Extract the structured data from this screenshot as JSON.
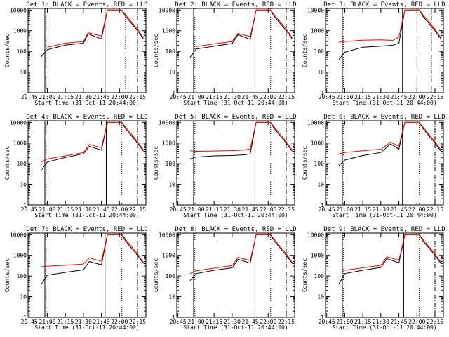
{
  "chart_data": [
    {
      "type": "line",
      "title": "Det 1: BLACK = Events, RED = LLD",
      "xlabel": "Start Time (31-Oct-11 20:44:00)",
      "ylabel": "Counts/sec",
      "yscale": "log",
      "ylim": [
        1,
        12000
      ],
      "x_ticks": [
        "20:45",
        "21:00",
        "21:15",
        "21:30",
        "21:45",
        "22:00",
        "22:15"
      ],
      "y_ticks": [
        "1",
        "10",
        "100",
        "1000",
        "10000"
      ],
      "solid_lines": [
        "20:58",
        "21:48"
      ],
      "dotted_lines": [
        "20:59",
        "22:05"
      ],
      "dashdot_lines": [
        "22:15"
      ],
      "x": [
        "20:55",
        "21:00",
        "21:15",
        "21:30",
        "21:34",
        "21:45",
        "21:50",
        "21:56",
        "22:02",
        "22:05",
        "22:15",
        "22:20"
      ],
      "series": [
        {
          "name": "BLACK",
          "color": "#000000",
          "values": [
            55,
            120,
            200,
            250,
            700,
            400,
            10000,
            10000,
            10000,
            5000,
            1000,
            400
          ]
        },
        {
          "name": "RED",
          "color": "#ff0000",
          "values": [
            null,
            160,
            250,
            300,
            800,
            550,
            10000,
            10000,
            10000,
            6000,
            1200,
            450
          ]
        }
      ]
    },
    {
      "type": "line",
      "title": "Det 2: BLACK = Events, RED = LLD",
      "xlabel": "Start Time (31-Oct-11 20:44:00)",
      "ylabel": "Counts/sec",
      "yscale": "log",
      "ylim": [
        1,
        12000
      ],
      "x_ticks": [
        "20:45",
        "21:00",
        "21:15",
        "21:30",
        "21:45",
        "22:00",
        "22:15"
      ],
      "y_ticks": [
        "1",
        "10",
        "100",
        "1000",
        "10000"
      ],
      "solid_lines": [
        "20:58",
        "21:49"
      ],
      "dotted_lines": [
        "20:59",
        "22:02"
      ],
      "dashdot_lines": [
        "22:15"
      ],
      "x": [
        "20:55",
        "21:00",
        "21:15",
        "21:30",
        "21:35",
        "21:45",
        "21:50",
        "21:56",
        "22:02",
        "22:05",
        "22:15",
        "22:20"
      ],
      "series": [
        {
          "name": "BLACK",
          "color": "#000000",
          "values": [
            50,
            130,
            180,
            240,
            650,
            380,
            10000,
            10000,
            10000,
            5000,
            1000,
            400
          ]
        },
        {
          "name": "RED",
          "color": "#ff0000",
          "values": [
            null,
            170,
            230,
            300,
            750,
            520,
            10000,
            10000,
            10000,
            6000,
            1200,
            450
          ]
        }
      ]
    },
    {
      "type": "line",
      "title": "Det 3: BLACK = Events, RED = LLD",
      "xlabel": "Start Time (31-Oct-11 20:44:00)",
      "ylabel": "Counts/sec",
      "yscale": "log",
      "ylim": [
        1,
        12000
      ],
      "x_ticks": [
        "20:45",
        "21:00",
        "21:15",
        "21:30",
        "21:45",
        "22:00",
        "22:15"
      ],
      "y_ticks": [
        "1",
        "10",
        "100",
        "1000",
        "10000"
      ],
      "solid_lines": [
        "20:58",
        "21:48"
      ],
      "dotted_lines": [
        "20:59",
        "22:00"
      ],
      "dashdot_lines": [
        "22:12"
      ],
      "x": [
        "20:55",
        "21:00",
        "21:15",
        "21:30",
        "21:40",
        "21:45",
        "21:50",
        "21:56",
        "22:02",
        "22:05",
        "22:15",
        "22:20"
      ],
      "series": [
        {
          "name": "BLACK",
          "color": "#000000",
          "values": [
            40,
            90,
            160,
            180,
            200,
            250,
            10000,
            10000,
            10000,
            5000,
            1000,
            400
          ]
        },
        {
          "name": "RED",
          "color": "#ff0000",
          "values": [
            280,
            300,
            350,
            360,
            340,
            500,
            10000,
            10000,
            10000,
            6000,
            1200,
            450
          ]
        }
      ]
    },
    {
      "type": "line",
      "title": "Det 4: BLACK = Events, RED = LLD",
      "xlabel": "Start Time (31-Oct-11 20:44:00)",
      "ylabel": "Counts/sec",
      "yscale": "log",
      "ylim": [
        1,
        12000
      ],
      "x_ticks": [
        "20:45",
        "21:00",
        "21:15",
        "21:30",
        "21:45",
        "22:00",
        "22:15"
      ],
      "y_ticks": [
        "1",
        "10",
        "100",
        "1000",
        "10000"
      ],
      "solid_lines": [
        "20:58",
        "21:49"
      ],
      "dotted_lines": [
        "20:59",
        "22:02"
      ],
      "dashdot_lines": [
        "22:15"
      ],
      "x": [
        "20:55",
        "21:00",
        "21:15",
        "21:30",
        "21:35",
        "21:45",
        "21:50",
        "21:56",
        "22:02",
        "22:05",
        "22:15",
        "22:20"
      ],
      "series": [
        {
          "name": "BLACK",
          "color": "#000000",
          "values": [
            50,
            120,
            200,
            300,
            700,
            450,
            10000,
            10000,
            10000,
            5000,
            1000,
            400
          ]
        },
        {
          "name": "RED",
          "color": "#ff0000",
          "values": [
            120,
            170,
            240,
            350,
            850,
            600,
            10000,
            10000,
            10000,
            6000,
            1200,
            450
          ]
        }
      ]
    },
    {
      "type": "line",
      "title": "Det 5: BLACK = Events, RED = LLD",
      "xlabel": "Start Time (31-Oct-11 20:44:00)",
      "ylabel": "Counts/sec",
      "yscale": "log",
      "ylim": [
        1,
        12000
      ],
      "x_ticks": [
        "20:45",
        "21:00",
        "21:15",
        "21:30",
        "21:45",
        "22:00",
        "22:15"
      ],
      "y_ticks": [
        "1",
        "10",
        "100",
        "1000",
        "10000"
      ],
      "solid_lines": [
        "20:58",
        "21:49"
      ],
      "dotted_lines": [
        "20:59",
        "22:02"
      ],
      "dashdot_lines": [
        "22:15"
      ],
      "x": [
        "20:55",
        "21:00",
        "21:15",
        "21:30",
        "21:40",
        "21:45",
        "21:50",
        "21:56",
        "22:02",
        "22:05",
        "22:15",
        "22:20"
      ],
      "series": [
        {
          "name": "BLACK",
          "color": "#000000",
          "values": [
            170,
            210,
            240,
            250,
            270,
            300,
            10000,
            10000,
            10000,
            5000,
            1000,
            400
          ]
        },
        {
          "name": "RED",
          "color": "#ff0000",
          "values": [
            420,
            400,
            410,
            430,
            460,
            520,
            10000,
            10000,
            10000,
            6000,
            1200,
            450
          ]
        }
      ]
    },
    {
      "type": "line",
      "title": "Det 6: BLACK = Events, RED = LLD",
      "xlabel": "Start Time (31-Oct-11 20:44:00)",
      "ylabel": "Counts/sec",
      "yscale": "log",
      "ylim": [
        1,
        12000
      ],
      "x_ticks": [
        "20:45",
        "21:00",
        "21:15",
        "21:30",
        "21:45",
        "22:00",
        "22:15"
      ],
      "y_ticks": [
        "1",
        "10",
        "100",
        "1000",
        "10000"
      ],
      "solid_lines": [
        "20:58",
        "21:48"
      ],
      "dotted_lines": [
        "20:59",
        "22:02"
      ],
      "dashdot_lines": [
        "22:15"
      ],
      "x": [
        "20:55",
        "21:00",
        "21:15",
        "21:30",
        "21:38",
        "21:45",
        "21:50",
        "21:56",
        "22:02",
        "22:05",
        "22:15",
        "22:20"
      ],
      "series": [
        {
          "name": "BLACK",
          "color": "#000000",
          "values": [
            80,
            150,
            250,
            350,
            900,
            500,
            10000,
            10000,
            10000,
            5000,
            1000,
            400
          ]
        },
        {
          "name": "RED",
          "color": "#ff0000",
          "values": [
            300,
            350,
            420,
            500,
            1100,
            700,
            10000,
            10000,
            10000,
            6000,
            1200,
            450
          ]
        }
      ]
    },
    {
      "type": "line",
      "title": "Det 7: BLACK = Events, RED = LLD",
      "xlabel": "Start Time (31-Oct-11 20:44:00)",
      "ylabel": "Counts/sec",
      "yscale": "log",
      "ylim": [
        1,
        12000
      ],
      "x_ticks": [
        "20:45",
        "21:00",
        "21:15",
        "21:30",
        "21:45",
        "22:00",
        "22:15"
      ],
      "y_ticks": [
        "1",
        "10",
        "100",
        "1000",
        "10000"
      ],
      "solid_lines": [
        "20:58",
        "21:48"
      ],
      "dotted_lines": [
        "20:59",
        "22:02"
      ],
      "dashdot_lines": [
        "22:15"
      ],
      "x": [
        "20:55",
        "21:00",
        "21:15",
        "21:30",
        "21:35",
        "21:45",
        "21:50",
        "21:56",
        "22:02",
        "22:05",
        "22:15",
        "22:20"
      ],
      "series": [
        {
          "name": "BLACK",
          "color": "#000000",
          "values": [
            40,
            110,
            150,
            200,
            500,
            350,
            10000,
            10000,
            10000,
            5000,
            1000,
            400
          ]
        },
        {
          "name": "RED",
          "color": "#ff0000",
          "values": [
            280,
            300,
            330,
            380,
            750,
            520,
            10000,
            10000,
            10000,
            6000,
            1200,
            450
          ]
        }
      ]
    },
    {
      "type": "line",
      "title": "Det 8: BLACK = Events, RED = LLD",
      "xlabel": "Start Time (31-Oct-11 20:44:00)",
      "ylabel": "Counts/sec",
      "yscale": "log",
      "ylim": [
        1,
        12000
      ],
      "x_ticks": [
        "20:45",
        "21:00",
        "21:15",
        "21:30",
        "21:45",
        "22:00",
        "22:15"
      ],
      "y_ticks": [
        "1",
        "10",
        "100",
        "1000",
        "10000"
      ],
      "solid_lines": [
        "20:58",
        "21:49"
      ],
      "dotted_lines": [
        "20:59",
        "22:02"
      ],
      "dashdot_lines": [
        "22:15"
      ],
      "x": [
        "20:55",
        "21:00",
        "21:15",
        "21:30",
        "21:35",
        "21:45",
        "21:50",
        "21:56",
        "22:02",
        "22:05",
        "22:15",
        "22:20"
      ],
      "series": [
        {
          "name": "BLACK",
          "color": "#000000",
          "values": [
            60,
            130,
            190,
            250,
            650,
            420,
            10000,
            10000,
            10000,
            5000,
            1000,
            400
          ]
        },
        {
          "name": "RED",
          "color": "#ff0000",
          "values": [
            130,
            180,
            240,
            320,
            800,
            560,
            10000,
            10000,
            10000,
            6000,
            1200,
            450
          ]
        }
      ]
    },
    {
      "type": "line",
      "title": "Det 9: BLACK = Events, RED = LLD",
      "xlabel": "Start Time (31-Oct-11 20:44:00)",
      "ylabel": "Counts/sec",
      "yscale": "log",
      "ylim": [
        1,
        12000
      ],
      "x_ticks": [
        "20:45",
        "21:00",
        "21:15",
        "21:30",
        "21:45",
        "22:00",
        "22:15"
      ],
      "y_ticks": [
        "1",
        "10",
        "100",
        "1000",
        "10000"
      ],
      "solid_lines": [
        "20:58",
        "21:49"
      ],
      "dotted_lines": [
        "20:59",
        "22:02"
      ],
      "dashdot_lines": [
        "22:15"
      ],
      "x": [
        "20:55",
        "21:00",
        "21:15",
        "21:30",
        "21:35",
        "21:45",
        "21:50",
        "21:56",
        "22:02",
        "22:05",
        "22:15",
        "22:20"
      ],
      "series": [
        {
          "name": "BLACK",
          "color": "#000000",
          "values": [
            40,
            130,
            190,
            260,
            700,
            430,
            10000,
            10000,
            10000,
            5000,
            1000,
            400
          ]
        },
        {
          "name": "RED",
          "color": "#ff0000",
          "values": [
            null,
            190,
            250,
            330,
            850,
            580,
            10000,
            10000,
            10000,
            6000,
            1200,
            450
          ]
        }
      ]
    }
  ]
}
